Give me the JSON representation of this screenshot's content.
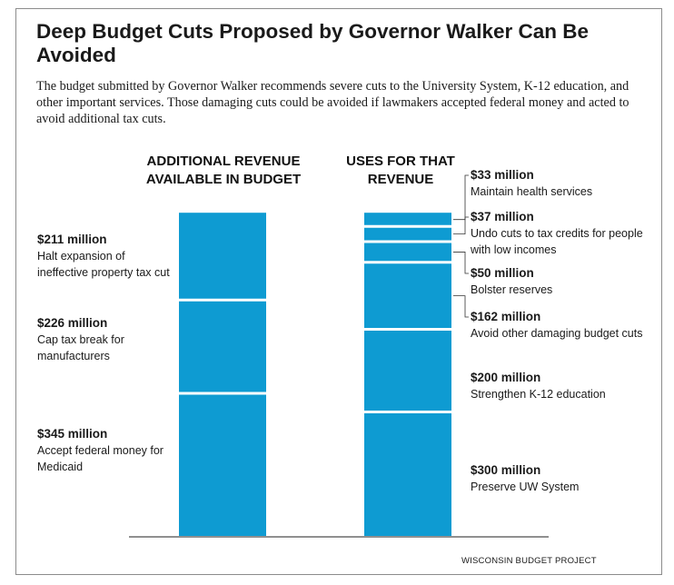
{
  "title": "Deep Budget Cuts Proposed by Governor Walker Can Be Avoided",
  "subtitle": "The budget submitted by Governor Walker recommends severe cuts to the University System, K-12 education, and other important services. Those damaging cuts could be avoided if lawmakers accepted federal money and acted to avoid additional tax cuts.",
  "source": "WISCONSIN BUDGET PROJECT",
  "colors": {
    "bar": "#0e9bd2",
    "separator": "#ffffff",
    "text": "#1a1a1a"
  },
  "chart_data": {
    "type": "bar",
    "stacked": true,
    "unit": "million",
    "categories": [
      "ADDITIONAL REVENUE AVAILABLE IN BUDGET",
      "USES FOR THAT REVENUE"
    ],
    "series": [
      {
        "segments": [
          {
            "value": 345,
            "amount_label": "$345 million",
            "description": "Accept federal money for Medicaid"
          },
          {
            "value": 226,
            "amount_label": "$226 million",
            "description": "Cap tax break for manufacturers"
          },
          {
            "value": 211,
            "amount_label": "$211 million",
            "description": "Halt expansion of ineffective property tax cut"
          }
        ]
      },
      {
        "segments": [
          {
            "value": 300,
            "amount_label": "$300 million",
            "description": "Preserve UW System"
          },
          {
            "value": 200,
            "amount_label": "$200 million",
            "description": "Strengthen K-12 education"
          },
          {
            "value": 162,
            "amount_label": "$162 million",
            "description": "Avoid other damaging budget cuts"
          },
          {
            "value": 50,
            "amount_label": "$50 million",
            "description": "Bolster reserves"
          },
          {
            "value": 37,
            "amount_label": "$37 million",
            "description": "Undo cuts to tax credits for people with low incomes"
          },
          {
            "value": 33,
            "amount_label": "$33 million",
            "description": "Maintain health services"
          }
        ]
      }
    ],
    "legend": "none",
    "grid": false
  }
}
